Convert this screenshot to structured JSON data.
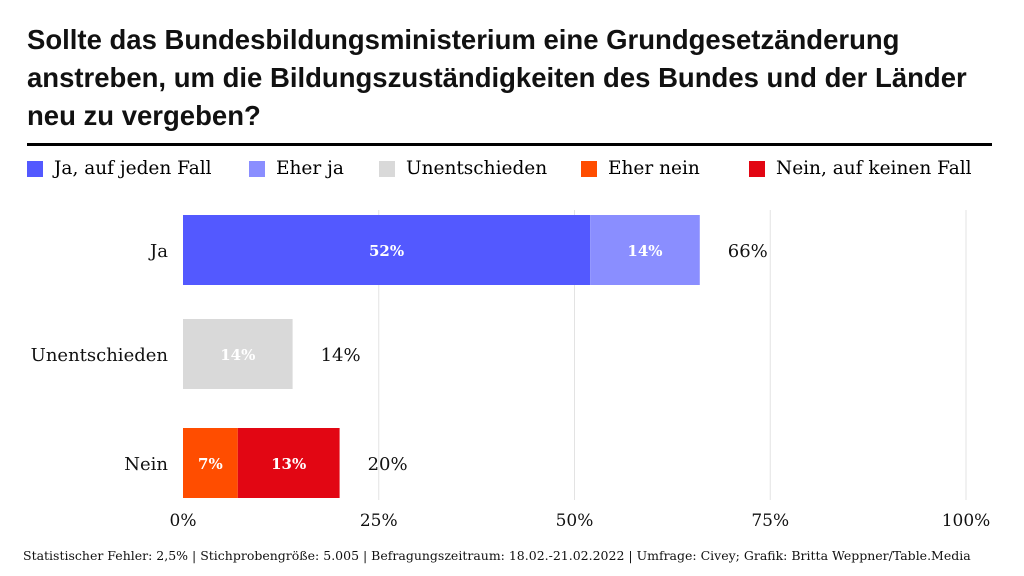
{
  "title": "Sollte das Bundesbildungsministerium eine Grundgesetzänderung anstreben, um die Bildungszuständigkeiten des Bundes und der Länder neu zu vergeben?",
  "legend": [
    {
      "label": "Ja, auf jeden Fall",
      "color": "#5359ff"
    },
    {
      "label": "Eher ja",
      "color": "#8a8eff"
    },
    {
      "label": "Unentschieden",
      "color": "#d9d9d9"
    },
    {
      "label": "Eher nein",
      "color": "#ff4d00"
    },
    {
      "label": "Nein, auf keinen Fall",
      "color": "#e20613"
    }
  ],
  "chart_data": {
    "type": "bar",
    "orientation": "horizontal",
    "stacked": true,
    "categories": [
      "Ja",
      "Unentschieden",
      "Nein"
    ],
    "series": [
      {
        "name": "Ja, auf jeden Fall",
        "values": [
          52,
          0,
          0
        ],
        "color": "#5359ff",
        "labels": [
          "52%",
          "",
          ""
        ],
        "label_color": "#ffffff"
      },
      {
        "name": "Eher ja",
        "values": [
          14,
          0,
          0
        ],
        "color": "#8a8eff",
        "labels": [
          "14%",
          "",
          ""
        ],
        "label_color": "#ffffff"
      },
      {
        "name": "Unentschieden",
        "values": [
          0,
          14,
          0
        ],
        "color": "#d9d9d9",
        "labels": [
          "",
          "14%",
          ""
        ],
        "label_color": "#ffffff"
      },
      {
        "name": "Eher nein",
        "values": [
          0,
          0,
          7
        ],
        "color": "#ff4d00",
        "labels": [
          "",
          "",
          "7%"
        ],
        "label_color": "#ffffff"
      },
      {
        "name": "Nein, auf keinen Fall",
        "values": [
          0,
          0,
          13
        ],
        "color": "#e20613",
        "labels": [
          "",
          "",
          "13%"
        ],
        "label_color": "#ffffff"
      }
    ],
    "totals": [
      "66%",
      "14%",
      "20%"
    ],
    "xlim": [
      0,
      100
    ],
    "xticks": [
      0,
      25,
      50,
      75,
      100
    ],
    "xtick_labels": [
      "0%",
      "25%",
      "50%",
      "75%",
      "100%"
    ],
    "grid": true
  },
  "footer": "Statistischer Fehler: 2,5% | Stichprobengröße: 5.005 | Befragungszeitraum: 18.02.-21.02.2022  | Umfrage: Civey; Grafik: Britta Weppner/Table.Media"
}
